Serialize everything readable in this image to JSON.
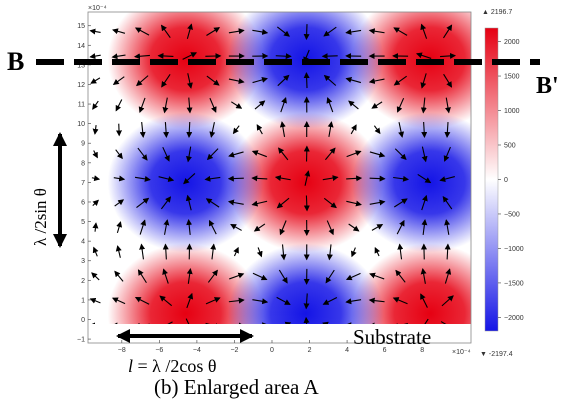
{
  "figure": {
    "caption": "(b) Enlarged area A",
    "section_label_left": "B",
    "section_label_right": "B'",
    "substrate_label": "Substrate",
    "vertical_dimension": "λ /2sin θ",
    "horizontal_dimension_l": "l",
    "horizontal_dimension_rest": " = λ /2cos θ"
  },
  "chart_data": {
    "type": "heatmap",
    "x_exponent_label": "×10⁻⁴",
    "y_exponent_label": "×10⁻⁴",
    "x_ticks": [
      -8,
      -6,
      -4,
      -2,
      0,
      2,
      4,
      6,
      8
    ],
    "y_ticks": [
      -1,
      0,
      1,
      2,
      3,
      4,
      5,
      6,
      7,
      8,
      9,
      10,
      11,
      12,
      13,
      14,
      15
    ],
    "xlim": [
      -9.8,
      10.6
    ],
    "ylim": [
      -1.2,
      15.7
    ],
    "field": {
      "pattern": "alternating red/blue lobes with arrows radiating from red centers toward blue centers",
      "red_centers": [
        [
          -4.6,
          13.3
        ],
        [
          1.8,
          7.0
        ],
        [
          8.4,
          13.3
        ],
        [
          -4.6,
          0.3
        ],
        [
          8.4,
          0.3
        ]
      ],
      "blue_centers": [
        [
          1.8,
          13.3
        ],
        [
          -4.6,
          7.0
        ],
        [
          8.4,
          7.0
        ],
        [
          1.8,
          0.3
        ]
      ]
    },
    "colorbar": {
      "max_label": "▲ 2196.7",
      "min_label": "▼ -2197.4",
      "ticks": [
        2000,
        1500,
        1000,
        500,
        0,
        -500,
        -1000,
        -1500,
        -2000
      ],
      "tick_labels": [
        "2000",
        "1500",
        "1000",
        "500",
        "0",
        "−500",
        "−1000",
        "−1500",
        "−2000"
      ],
      "range": [
        -2197.4,
        2196.7
      ],
      "colors": {
        "high": "#e60012",
        "mid": "#ffffff",
        "low": "#1414e6"
      }
    }
  }
}
